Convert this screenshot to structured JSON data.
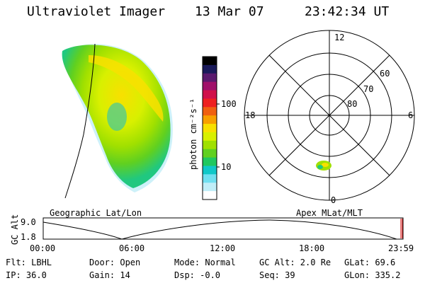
{
  "header": {
    "instrument": "Ultraviolet Imager",
    "date": "13 Mar 07",
    "time": "23:42:34 UT"
  },
  "colorbar": {
    "label": "photon cm⁻²s⁻¹",
    "ticks": [
      "100",
      "10"
    ],
    "colors": [
      "#000000",
      "#1a1a5a",
      "#5a1a6e",
      "#a0106a",
      "#d0104a",
      "#ee2020",
      "#f06010",
      "#f8a000",
      "#f8e000",
      "#d8f000",
      "#a0e000",
      "#60d020",
      "#20c860",
      "#10c8c8",
      "#70e0f0",
      "#c0eef8",
      "#ffffff"
    ]
  },
  "polar": {
    "mlt_labels": {
      "top": "12",
      "left": "18",
      "right": "6",
      "bottom": "0"
    },
    "lat_labels": [
      "60",
      "70",
      "80"
    ]
  },
  "map_labels": {
    "geographic": "Geographic Lat/Lon",
    "apex": "Apex MLat/MLT"
  },
  "timeline": {
    "ylabel": "GC Alt",
    "ymax": "9.0",
    "ymin": "1.8",
    "xticks": [
      "00:00",
      "06:00",
      "12:00",
      "18:00",
      "23:59"
    ]
  },
  "info": {
    "flt": "Flt: LBHL",
    "ip": "IP: 36.0",
    "door": "Door: Open",
    "gain": "Gain: 14",
    "mode": "Mode: Normal",
    "dsp": "Dsp:   -0.0",
    "gcalt": "GC Alt: 2.0 Re",
    "seq": "Seq: 39",
    "glat": "GLat:  69.6",
    "glon": "GLon: 335.2"
  }
}
